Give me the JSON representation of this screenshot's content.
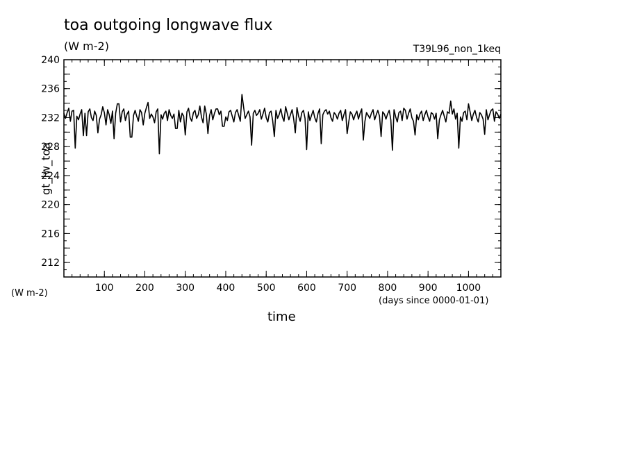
{
  "chart_data": {
    "type": "line",
    "title": "toa outgoing longwave flux",
    "units_top": "(W m-2)",
    "run_label": "T39L96_non_1keq",
    "ylabel": "gt_lw_toa",
    "units_left": "(W m-2)",
    "xlabel": "time",
    "time_units": "(days since 0000-01-01)",
    "xlim": [
      0,
      1080
    ],
    "ylim": [
      210,
      240
    ],
    "x_ticks": [
      100,
      200,
      300,
      400,
      500,
      600,
      700,
      800,
      900,
      1000
    ],
    "y_ticks": [
      212,
      216,
      220,
      224,
      228,
      232,
      236,
      240
    ],
    "grid": false,
    "series": [
      {
        "x_start": 0,
        "x_step": 4,
        "line_color": "#000000",
        "values": [
          232.6,
          231.9,
          232.7,
          232.1,
          231.5,
          232.9,
          233.0,
          227.8,
          232.2,
          231.7,
          232.5,
          233.1,
          231.3,
          232.6,
          229.5,
          232.8,
          233.2,
          232.0,
          231.6,
          232.9,
          232.3,
          229.9,
          231.8,
          232.4,
          233.5,
          232.7,
          231.0,
          233.1,
          232.4,
          231.2,
          232.9,
          229.1,
          232.6,
          233.9,
          232.2,
          231.4,
          232.8,
          233.2,
          231.6,
          232.5,
          232.9,
          229.3,
          231.7,
          232.3,
          233.0,
          232.2,
          231.5,
          233.1,
          232.7,
          231.0,
          232.6,
          233.4,
          234.0,
          231.9,
          232.5,
          232.1,
          231.3,
          232.8,
          233.2,
          227.0,
          232.4,
          231.8,
          232.6,
          232.9,
          231.6,
          233.1,
          232.3,
          231.9,
          232.5,
          230.5,
          232.7,
          233.0,
          231.4,
          232.6,
          232.2,
          229.6,
          232.8,
          233.3,
          232.0,
          231.5,
          232.7,
          233.0,
          231.9,
          232.4,
          233.6,
          232.1,
          231.3,
          232.8,
          232.5,
          229.8,
          232.3,
          233.1,
          231.7,
          232.6,
          233.2,
          231.8,
          232.4,
          232.9,
          230.8,
          232.5,
          232.1,
          231.6,
          232.8,
          233.0,
          232.2,
          231.4,
          232.7,
          233.1,
          232.3,
          231.5,
          232.8,
          233.5,
          231.9,
          232.4,
          232.9,
          232.1,
          231.7,
          232.6,
          233.0,
          232.3,
          232.6,
          233.1,
          231.8,
          232.5,
          233.3,
          232.0,
          231.4,
          232.7,
          232.9,
          231.6,
          232.5,
          233.0,
          231.9,
          232.4,
          233.2,
          232.1,
          231.5,
          232.8,
          232.6,
          231.7,
          232.4,
          233.1,
          231.8,
          232.6,
          233.4,
          232.2,
          231.5,
          232.7,
          233.0,
          231.9,
          232.5,
          232.8,
          231.6,
          232.3,
          233.0,
          232.0,
          231.4,
          232.6,
          233.2,
          231.8,
          232.4,
          232.9,
          231.7,
          232.5,
          232.9,
          232.0,
          231.5,
          232.7,
          232.4,
          231.8,
          232.6,
          233.0,
          231.6,
          232.4,
          233.1,
          232.1,
          231.4,
          232.8,
          232.5,
          231.7,
          232.4,
          232.9,
          231.8,
          232.6,
          233.2,
          232.0,
          231.5,
          232.7,
          232.3,
          231.9,
          232.6,
          233.1,
          231.7,
          232.4,
          233.0,
          232.2,
          231.6,
          232.8,
          232.5,
          231.8,
          232.5,
          233.0,
          231.7,
          232.6,
          233.1,
          232.1,
          231.4,
          232.7,
          232.9,
          231.6,
          232.4,
          233.0,
          231.8,
          232.6,
          233.2,
          232.0,
          231.5,
          232.8,
          232.4,
          231.7,
          232.5,
          232.9,
          231.6,
          232.4,
          233.0,
          232.1,
          231.5,
          232.7,
          232.5,
          231.8,
          232.6,
          233.1,
          231.7,
          232.4,
          233.0,
          232.2,
          231.4,
          232.8,
          232.6,
          231.9,
          232.5,
          233.2,
          231.8,
          232.6,
          233.3,
          232.1,
          231.5,
          232.7,
          232.9,
          231.7,
          232.4,
          232.8,
          231.6,
          232.5,
          233.0,
          232.0,
          231.4,
          232.7,
          232.4,
          231.8,
          232.6,
          233.1,
          231.7,
          232.4,
          233.0,
          232.2,
          231.5,
          232.8,
          232.5,
          231.9,
          232.5,
          233.0
        ],
        "spikes": [
          {
            "x": 12,
            "y": 233.3
          },
          {
            "x": 28,
            "y": 227.8
          },
          {
            "x": 48,
            "y": 229.5
          },
          {
            "x": 84,
            "y": 229.9
          },
          {
            "x": 124,
            "y": 229.1
          },
          {
            "x": 136,
            "y": 233.9
          },
          {
            "x": 168,
            "y": 229.3
          },
          {
            "x": 208,
            "y": 234.1
          },
          {
            "x": 236,
            "y": 227.0
          },
          {
            "x": 280,
            "y": 230.5
          },
          {
            "x": 300,
            "y": 229.6
          },
          {
            "x": 348,
            "y": 233.6
          },
          {
            "x": 356,
            "y": 229.8
          },
          {
            "x": 380,
            "y": 233.2
          },
          {
            "x": 396,
            "y": 230.8
          },
          {
            "x": 440,
            "y": 235.2
          },
          {
            "x": 464,
            "y": 228.2
          },
          {
            "x": 472,
            "y": 233.0
          },
          {
            "x": 520,
            "y": 229.4
          },
          {
            "x": 548,
            "y": 233.5
          },
          {
            "x": 572,
            "y": 229.9
          },
          {
            "x": 600,
            "y": 227.6
          },
          {
            "x": 636,
            "y": 228.4
          },
          {
            "x": 648,
            "y": 233.1
          },
          {
            "x": 700,
            "y": 229.8
          },
          {
            "x": 740,
            "y": 228.9
          },
          {
            "x": 784,
            "y": 229.4
          },
          {
            "x": 812,
            "y": 227.5
          },
          {
            "x": 840,
            "y": 233.3
          },
          {
            "x": 868,
            "y": 229.6
          },
          {
            "x": 924,
            "y": 229.1
          },
          {
            "x": 956,
            "y": 234.3
          },
          {
            "x": 976,
            "y": 227.8
          },
          {
            "x": 1000,
            "y": 233.9
          },
          {
            "x": 1040,
            "y": 229.7
          },
          {
            "x": 1060,
            "y": 233.2
          }
        ]
      }
    ]
  }
}
